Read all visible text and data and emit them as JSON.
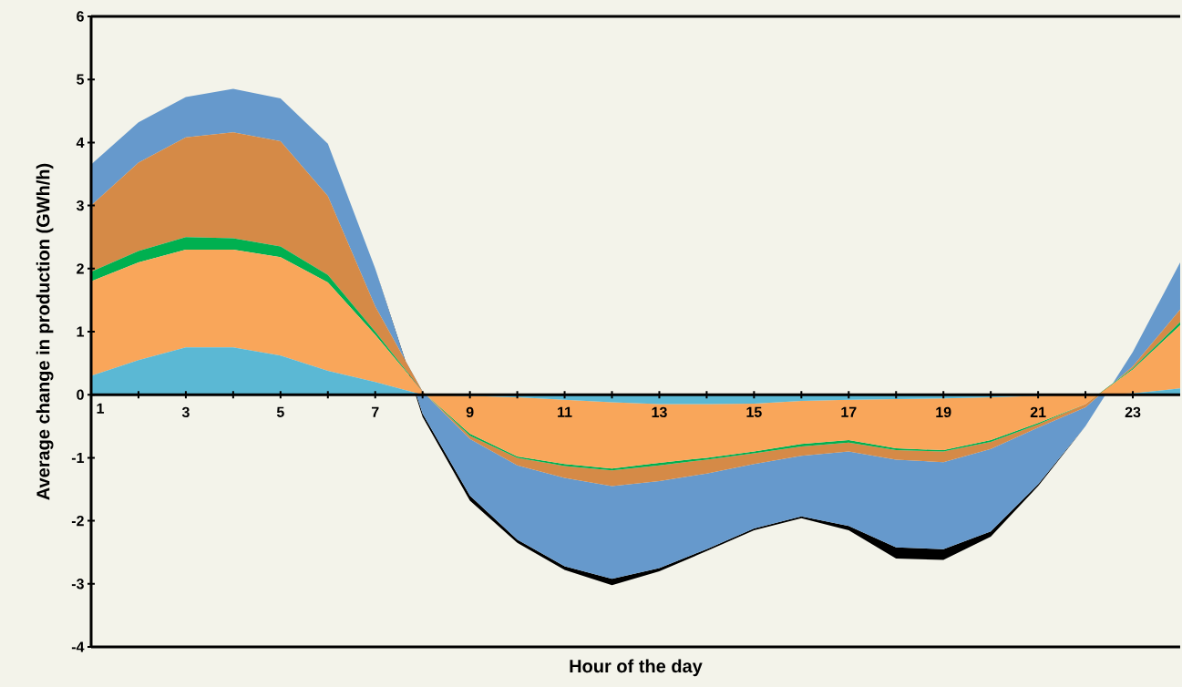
{
  "chart_data": {
    "type": "area",
    "stacked": true,
    "xlabel": "Hour of the day",
    "ylabel": "Average change in production (GWh/h)",
    "x": [
      1,
      2,
      3,
      4,
      5,
      6,
      7,
      8,
      9,
      10,
      11,
      12,
      13,
      14,
      15,
      16,
      17,
      18,
      19,
      20,
      21,
      22,
      23,
      24
    ],
    "xlim": [
      1,
      24
    ],
    "ylim": [
      -4,
      6
    ],
    "yticks": [
      -4,
      -3,
      -2,
      -1,
      0,
      1,
      2,
      3,
      4,
      5,
      6
    ],
    "xticks": [
      1,
      {
        "value": 2,
        "label": null
      },
      3,
      {
        "value": 4,
        "label": null
      },
      5,
      {
        "value": 6,
        "label": null
      },
      7,
      {
        "value": 8,
        "label": null
      },
      9,
      {
        "value": 10,
        "label": null
      },
      11,
      {
        "value": 12,
        "label": null
      },
      13,
      {
        "value": 14,
        "label": null
      },
      15,
      {
        "value": 16,
        "label": null
      },
      17,
      {
        "value": 18,
        "label": null
      },
      19,
      {
        "value": 20,
        "label": null
      },
      21,
      {
        "value": 22,
        "label": null
      },
      23
    ],
    "grid": false,
    "series": [
      {
        "color": "#5bb8d4",
        "values": [
          0.3,
          0.55,
          0.75,
          0.75,
          0.62,
          0.38,
          0.2,
          0,
          -0.02,
          -0.04,
          -0.08,
          -0.12,
          -0.15,
          -0.15,
          -0.14,
          -0.1,
          -0.08,
          -0.07,
          -0.06,
          -0.04,
          -0.02,
          0,
          0.02,
          0.1
        ]
      },
      {
        "color": "#f9a65a",
        "values": [
          1.5,
          1.55,
          1.55,
          1.55,
          1.56,
          1.4,
          0.75,
          0.05,
          -0.6,
          -0.94,
          -1.02,
          -1.05,
          -0.93,
          -0.85,
          -0.76,
          -0.68,
          -0.64,
          -0.78,
          -0.82,
          -0.68,
          -0.43,
          -0.15,
          0.38,
          1.0
        ]
      },
      {
        "color": "#00b050",
        "values": [
          0.15,
          0.18,
          0.2,
          0.18,
          0.17,
          0.12,
          0.05,
          0,
          -0.03,
          -0.02,
          -0.03,
          -0.03,
          -0.04,
          -0.03,
          -0.03,
          -0.04,
          -0.04,
          -0.03,
          -0.02,
          -0.03,
          -0.02,
          0,
          0.02,
          0.05
        ]
      },
      {
        "color": "#d58a47",
        "values": [
          1.05,
          1.4,
          1.58,
          1.68,
          1.67,
          1.25,
          0.4,
          0,
          -0.05,
          -0.12,
          -0.19,
          -0.25,
          -0.25,
          -0.22,
          -0.17,
          -0.15,
          -0.14,
          -0.15,
          -0.17,
          -0.11,
          -0.05,
          -0.05,
          0.03,
          0.2
        ]
      },
      {
        "color": "#6699cc",
        "values": [
          0.65,
          0.64,
          0.64,
          0.69,
          0.68,
          0.83,
          0.6,
          -0.35,
          -0.9,
          -1.18,
          -1.4,
          -1.47,
          -1.38,
          -1.2,
          -1.02,
          -0.96,
          -1.18,
          -1.39,
          -1.38,
          -1.31,
          -0.9,
          -0.3,
          0.23,
          0.75
        ]
      },
      {
        "color": "#000000",
        "values": [
          0,
          0,
          0,
          0,
          0,
          0,
          0,
          -0.05,
          -0.08,
          -0.05,
          -0.06,
          -0.1,
          -0.05,
          -0.03,
          -0.03,
          -0.03,
          -0.07,
          -0.18,
          -0.17,
          -0.08,
          -0.03,
          0,
          0,
          0
        ]
      }
    ]
  }
}
